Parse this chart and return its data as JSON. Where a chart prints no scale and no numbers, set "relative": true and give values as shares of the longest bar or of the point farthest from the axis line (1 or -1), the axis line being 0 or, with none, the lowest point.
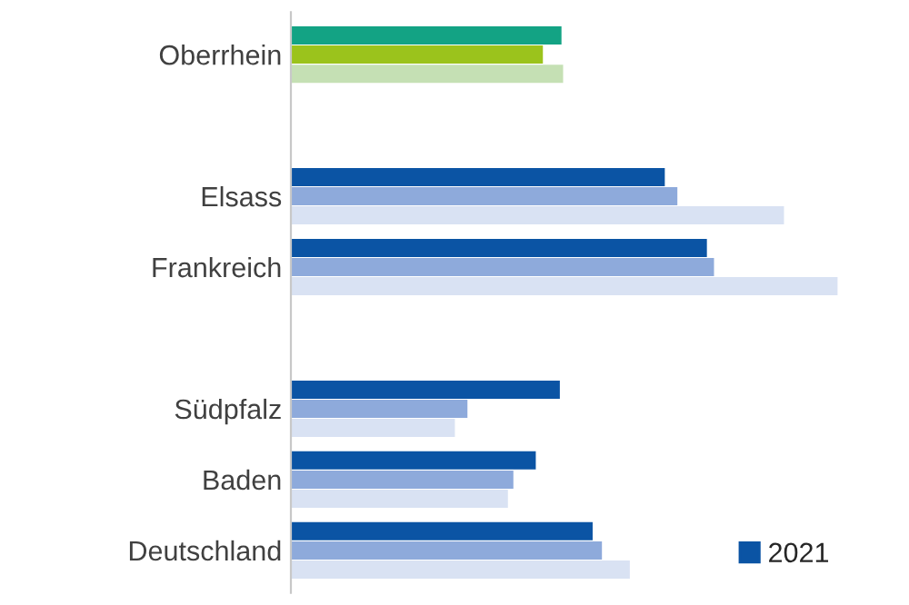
{
  "chart_data": {
    "type": "bar",
    "orientation": "horizontal",
    "relative": true,
    "legend": "bottom right",
    "grid": false,
    "categories": [
      "Oberrhein",
      null,
      "Elsass",
      "Frankreich",
      null,
      "Südpfalz",
      "Baden",
      "Deutschland"
    ],
    "series": [
      {
        "name": "2021",
        "color": "#0b54a4",
        "colors": [
          "#13a384",
          null,
          "#0b54a4",
          "#0b54a4",
          null,
          "#0b54a4",
          "#0b54a4",
          "#0b54a4"
        ],
        "values": [
          0.495,
          null,
          0.684,
          0.761,
          null,
          0.492,
          0.448,
          0.552
        ]
      },
      {
        "color": "#8eaadb",
        "colors": [
          "#9bc31c",
          null,
          "#8eaadb",
          "#8eaadb",
          null,
          "#8eaadb",
          "#8eaadb",
          "#8eaadb"
        ],
        "values": [
          0.461,
          null,
          0.707,
          0.774,
          null,
          0.323,
          0.407,
          0.569
        ]
      },
      {
        "color": "#d9e2f3",
        "colors": [
          "#c5e0b4",
          null,
          "#d9e2f3",
          "#d9e2f3",
          null,
          "#d9e2f3",
          "#d9e2f3",
          "#d9e2f3"
        ],
        "values": [
          0.498,
          null,
          0.902,
          1.0,
          null,
          0.3,
          0.397,
          0.62
        ]
      }
    ]
  }
}
